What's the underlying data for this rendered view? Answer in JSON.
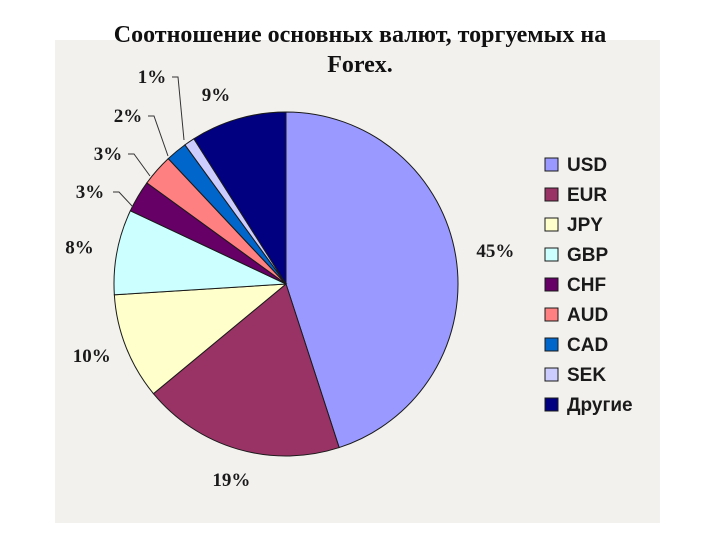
{
  "title": {
    "line1": "Соотношение основных валют, торгуемых на",
    "line2": "Forex."
  },
  "chart_data": {
    "type": "pie",
    "title": "Соотношение основных валют, торгуемых на Forex.",
    "legend_position": "right",
    "categories": [
      "USD",
      "EUR",
      "JPY",
      "GBP",
      "CHF",
      "AUD",
      "CAD",
      "SEK",
      "Другие"
    ],
    "values": [
      45,
      19,
      10,
      8,
      3,
      3,
      2,
      1,
      9
    ],
    "labels": [
      "45%",
      "19%",
      "10%",
      "8%",
      "3%",
      "3%",
      "2%",
      "1%",
      "9%"
    ],
    "colors": [
      "#9999ff",
      "#993366",
      "#ffffcc",
      "#ccffff",
      "#660066",
      "#ff8080",
      "#0066cc",
      "#ccccff",
      "#000080"
    ]
  }
}
